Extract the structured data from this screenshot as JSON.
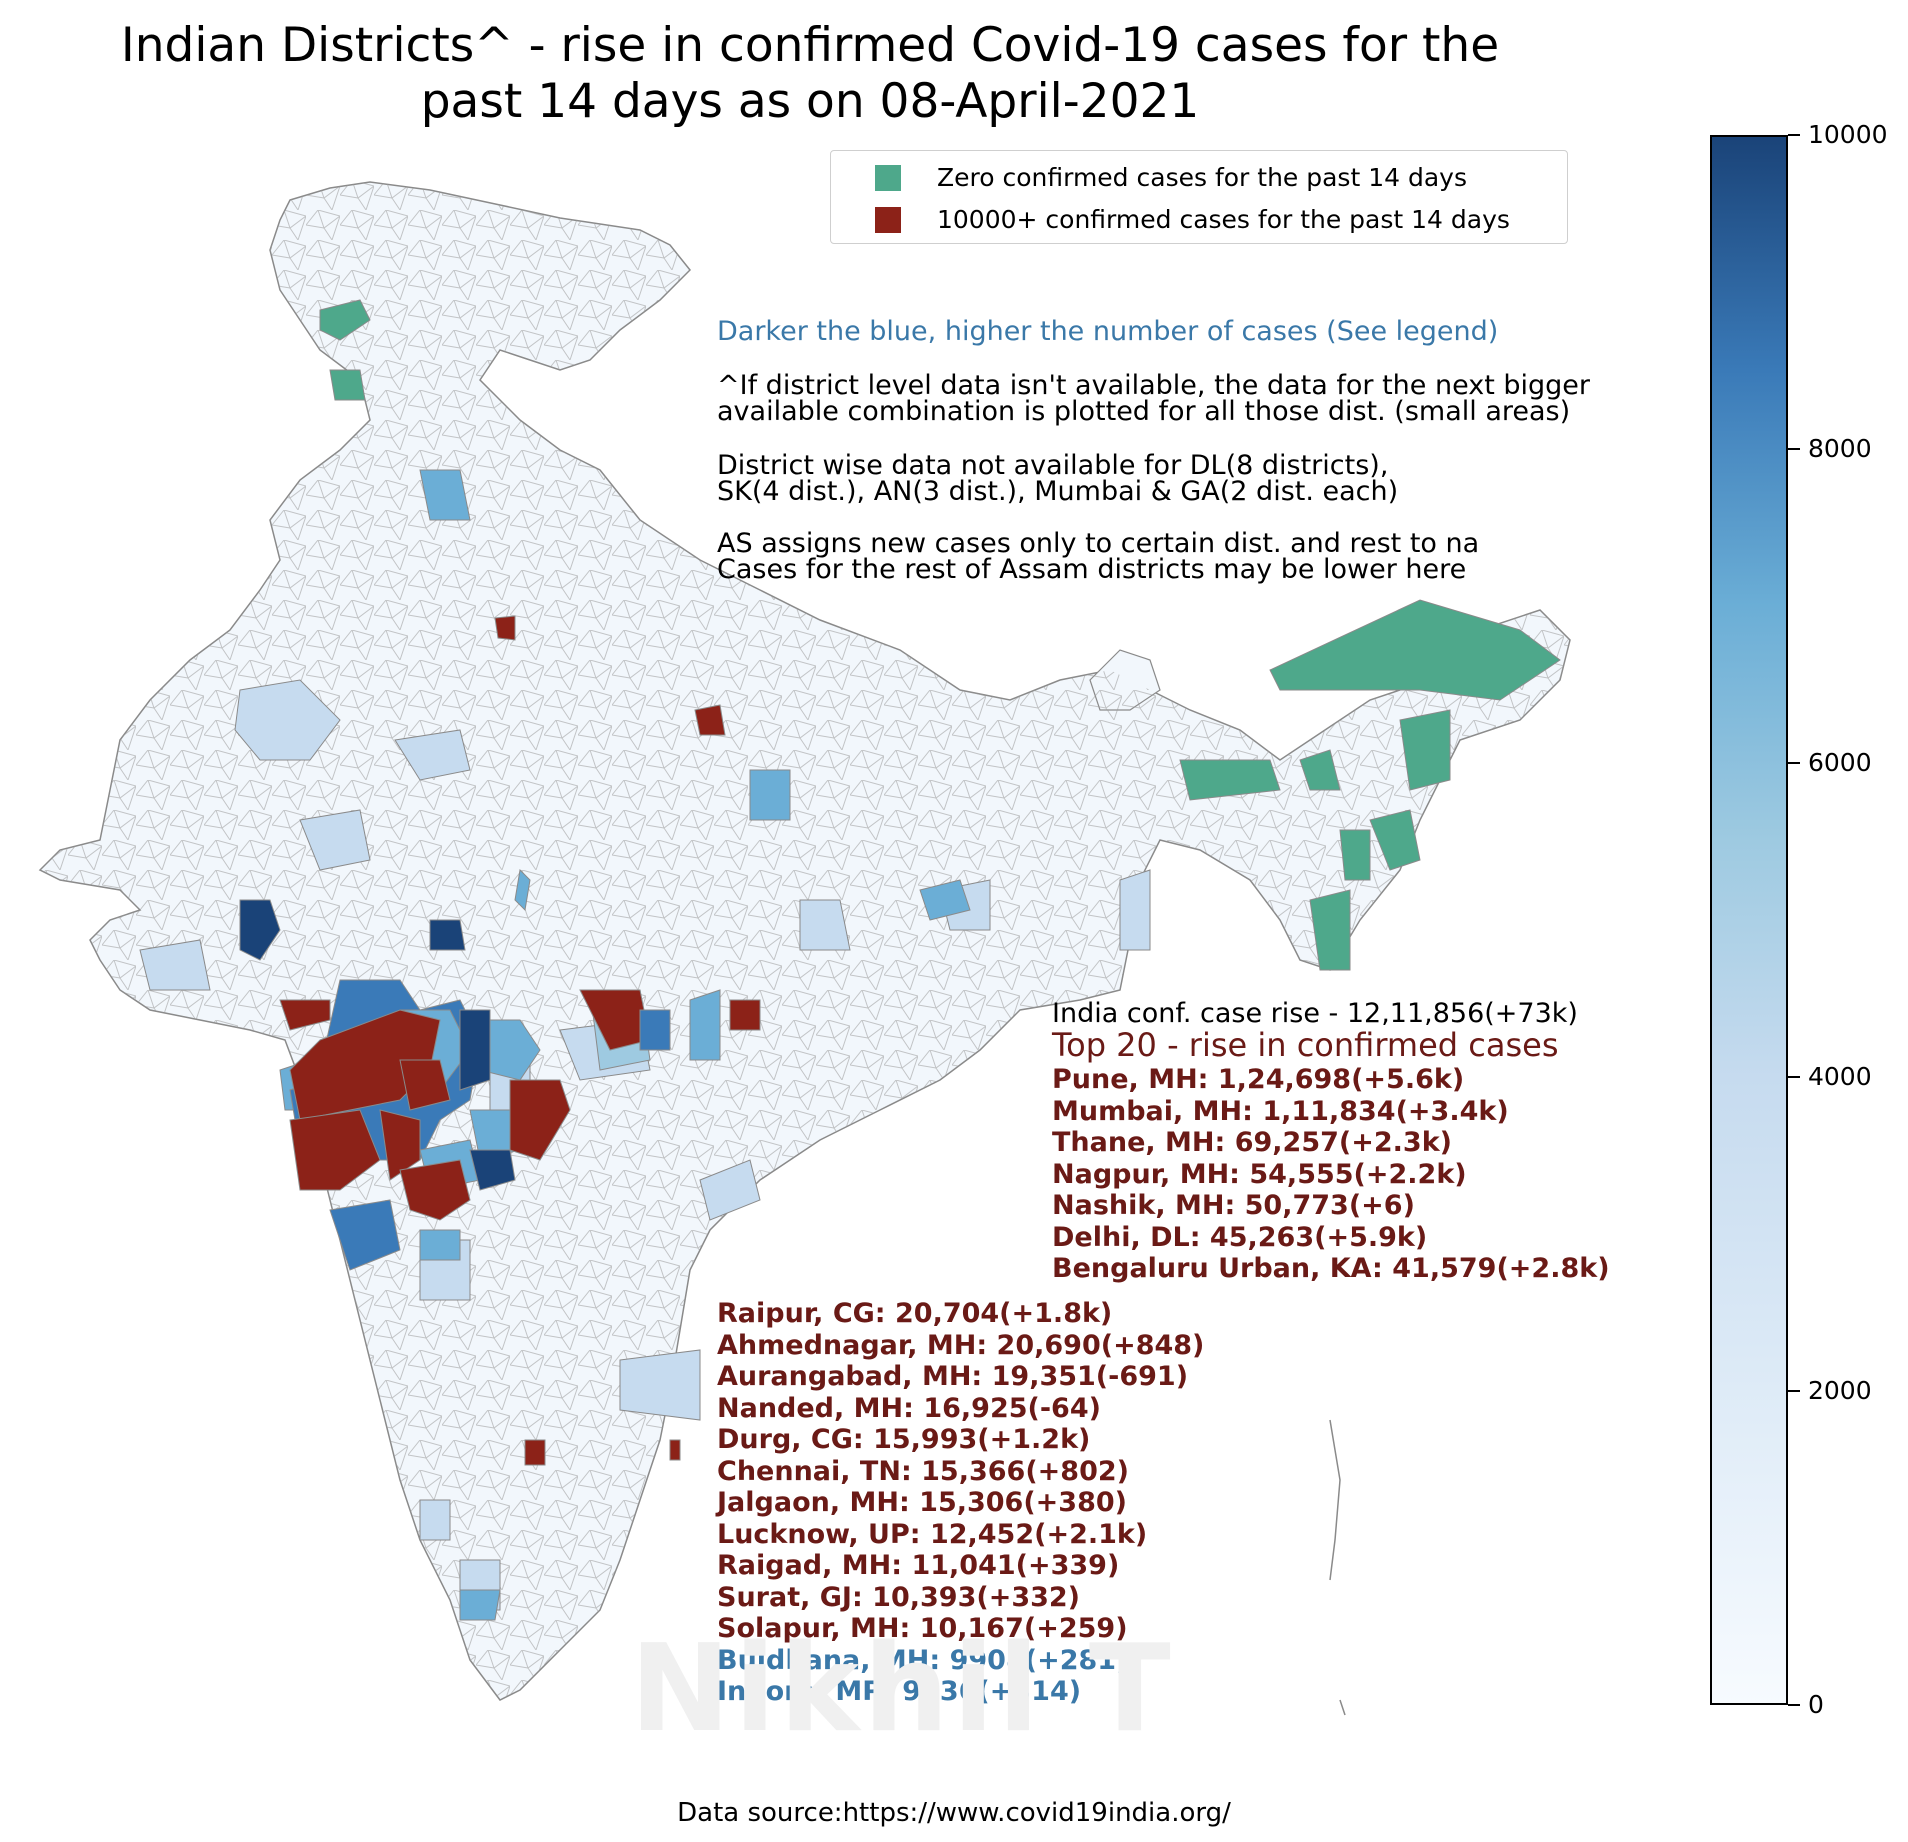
{
  "title_line1": "Indian Districts^ - rise in confirmed Covid-19 cases for the",
  "title_line2": "past 14 days as on 08-April-2021",
  "legend": {
    "zero": {
      "label": "Zero confirmed cases for the past 14 days",
      "color": "#4ea88b"
    },
    "high": {
      "label": "10000+ confirmed cases for the past 14 days",
      "color": "#8c2218"
    }
  },
  "notes": {
    "blue": "Darker the blue, higher the number of cases (See legend)",
    "caret_line1": "^If district level data isn't available, the data for the next bigger",
    "caret_line2": "available combination is plotted for all those dist. (small areas)",
    "missing_line1": "District wise data not available for DL(8 districts),",
    "missing_line2": "SK(4 dist.), AN(3 dist.), Mumbai & GA(2 dist. each)",
    "assam_line1": "AS assigns new cases only to certain dist. and rest to na",
    "assam_line2": "Cases for the rest of Assam districts may be lower here"
  },
  "stats": {
    "india_rise": "India conf. case rise - 12,11,856(+73k)",
    "top_title": "Top 20 - rise in confirmed cases",
    "top": [
      {
        "text": "Pune, MH: 1,24,698(+5.6k)",
        "color": "#6a1a16"
      },
      {
        "text": "Mumbai, MH: 1,11,834(+3.4k)",
        "color": "#6a1a16"
      },
      {
        "text": "Thane, MH: 69,257(+2.3k)",
        "color": "#6a1a16"
      },
      {
        "text": "Nagpur, MH: 54,555(+2.2k)",
        "color": "#6a1a16"
      },
      {
        "text": "Nashik, MH: 50,773(+6)",
        "color": "#6a1a16"
      },
      {
        "text": "Delhi, DL: 45,263(+5.9k)",
        "color": "#6a1a16"
      },
      {
        "text": "Bengaluru Urban, KA: 41,579(+2.8k)",
        "color": "#6a1a16"
      },
      {
        "text": "Raipur, CG: 20,704(+1.8k)",
        "color": "#6a1a16"
      },
      {
        "text": "Ahmednagar, MH: 20,690(+848)",
        "color": "#6a1a16"
      },
      {
        "text": "Aurangabad, MH: 19,351(-691)",
        "color": "#6a1a16"
      },
      {
        "text": "Nanded, MH: 16,925(-64)",
        "color": "#6a1a16"
      },
      {
        "text": "Durg, CG: 15,993(+1.2k)",
        "color": "#6a1a16"
      },
      {
        "text": "Chennai, TN: 15,366(+802)",
        "color": "#6a1a16"
      },
      {
        "text": "Jalgaon, MH: 15,306(+380)",
        "color": "#6a1a16"
      },
      {
        "text": "Lucknow, UP: 12,452(+2.1k)",
        "color": "#6a1a16"
      },
      {
        "text": "Raigad, MH: 11,041(+339)",
        "color": "#6a1a16"
      },
      {
        "text": "Surat, GJ: 10,393(+332)",
        "color": "#6a1a16"
      },
      {
        "text": "Solapur, MH: 10,167(+259)",
        "color": "#6a1a16"
      },
      {
        "text": "Buldhana, MH: 9908(+281)",
        "color": "#3a78a8"
      },
      {
        "text": "Indore, MP: 9836(+314)",
        "color": "#3a78a8"
      }
    ]
  },
  "colorbar": {
    "ticks": [
      "0",
      "2000",
      "4000",
      "6000",
      "8000",
      "10000"
    ],
    "min": 0,
    "max": 10000,
    "color_low": "#f7fbff",
    "color_high": "#1a4378"
  },
  "watermark": "Nikhil T",
  "source": "Data source:https://www.covid19india.org/"
}
